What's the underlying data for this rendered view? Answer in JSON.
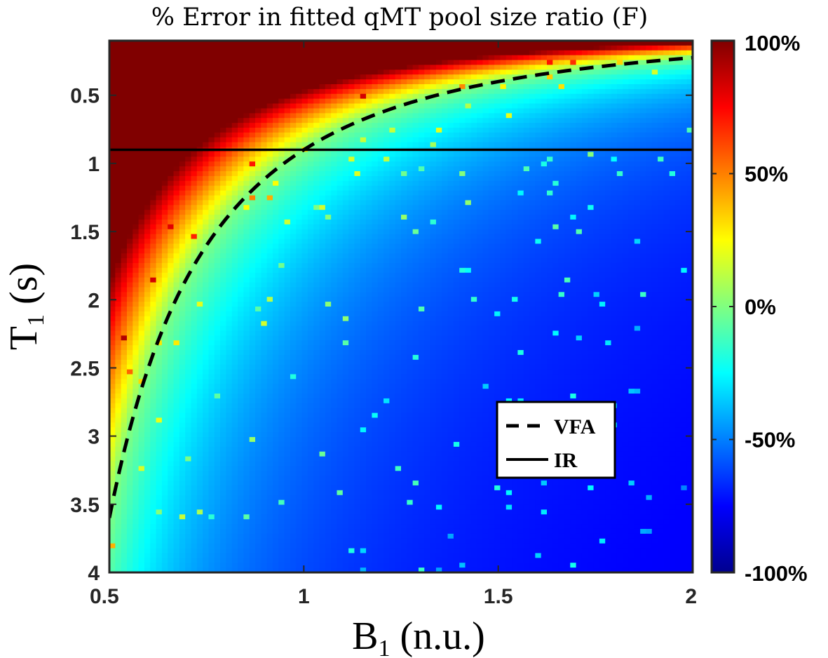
{
  "chart_data": {
    "type": "heatmap",
    "title": "% Error in fitted qMT pool size ratio (F)",
    "xlabel": {
      "main": "B",
      "sub": "1",
      "rest": " (n.u.)"
    },
    "ylabel": {
      "main": "T",
      "sub": "1",
      "rest": " (s)"
    },
    "xlim": [
      0.5,
      2.0
    ],
    "ylim": [
      0.1,
      4.0
    ],
    "y_reversed": true,
    "x_ticks": [
      0.5,
      1,
      1.5,
      2
    ],
    "x_tick_labels": [
      "0.5",
      "1",
      "1.5",
      "2"
    ],
    "y_ticks": [
      0.5,
      1,
      1.5,
      2,
      2.5,
      3,
      3.5,
      4
    ],
    "y_tick_labels": [
      "0.5",
      "1",
      "1.5",
      "2",
      "2.5",
      "3",
      "3.5",
      "4"
    ],
    "colormap": "jet",
    "clim": [
      -100,
      100
    ],
    "colorbar_ticks": [
      100,
      50,
      0,
      -50,
      -100
    ],
    "colorbar_tick_labels": [
      "100%",
      "50%",
      "0%",
      "-50%",
      "-100%"
    ],
    "error_model": "approx 100*(T1_vfa(B1)/T1 - 1) scaled; saturates at +100% above VFA curve, falls to about -70% far below",
    "lines": [
      {
        "name": "VFA",
        "style": "dashed",
        "color": "#000000",
        "x": [
          0.5,
          0.6,
          0.7,
          0.8,
          0.9,
          1.0,
          1.2,
          1.4,
          1.6,
          1.8,
          2.0
        ],
        "y": [
          3.6,
          2.5,
          1.84,
          1.41,
          1.11,
          0.9,
          0.625,
          0.459,
          0.352,
          0.278,
          0.225
        ]
      },
      {
        "name": "IR",
        "style": "solid",
        "color": "#000000",
        "x": [
          0.5,
          2.0
        ],
        "y": [
          0.9,
          0.9
        ]
      }
    ],
    "legend": {
      "position": "bottom-right",
      "entries": [
        "VFA",
        "IR"
      ]
    },
    "grid": false
  }
}
